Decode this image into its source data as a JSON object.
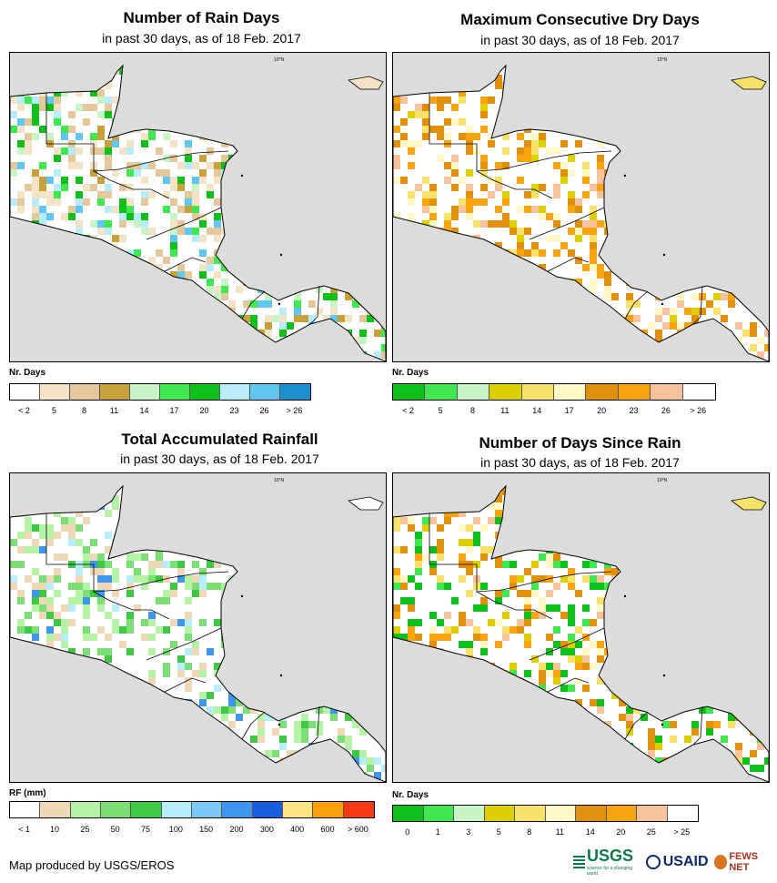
{
  "panels": {
    "rain_days": {
      "title": "Number of Rain Days",
      "subtitle": "in past 30 days, as of 18 Feb. 2017",
      "legend_title": "Nr. Days",
      "legend_colors": [
        "#ffffff",
        "#f5e3c8",
        "#e2c89a",
        "#c7a23b",
        "#c8f5c6",
        "#40e850",
        "#10c01a",
        "#b8ecf8",
        "#62c7f0",
        "#1a90d0"
      ],
      "legend_labels": [
        "< 2",
        "5",
        "8",
        "11",
        "14",
        "17",
        "20",
        "23",
        "26",
        "> 26"
      ],
      "map_markers": [
        "10°N"
      ]
    },
    "dry_days": {
      "title": "Maximum Consecutive Dry Days",
      "subtitle": "in past 30 days, as of 18 Feb. 2017",
      "legend_title": "Nr. Days",
      "legend_colors": [
        "#10c01a",
        "#40e850",
        "#c8f5c6",
        "#ddd000",
        "#f7e36a",
        "#fdf8c6",
        "#e0900a",
        "#f8a40e",
        "#f8c29a",
        "#ffffff"
      ],
      "legend_labels": [
        "< 2",
        "5",
        "8",
        "11",
        "14",
        "17",
        "20",
        "23",
        "26",
        "> 26"
      ],
      "map_markers": [
        "10°N"
      ]
    },
    "rainfall": {
      "title": "Total Accumulated Rainfall",
      "subtitle": "in past 30 days, as of 18 Feb. 2017",
      "legend_title": "RF (mm)",
      "legend_colors": [
        "#ffffff",
        "#efd8b8",
        "#b6f2a6",
        "#7ede76",
        "#3ec844",
        "#b8eefa",
        "#7cc8f6",
        "#3e96ee",
        "#1a5ee0",
        "#ffe484",
        "#f8a10c",
        "#f83a14"
      ],
      "legend_labels": [
        "< 1",
        "10",
        "25",
        "50",
        "75",
        "100",
        "150",
        "200",
        "300",
        "400",
        "600",
        "> 600"
      ],
      "map_markers": [
        "10°N"
      ]
    },
    "days_since_rain": {
      "title": "Number of Days Since Rain",
      "subtitle": "in past 30 days, as of 18 Feb. 2017",
      "legend_title": "Nr. Days",
      "legend_colors": [
        "#10c01a",
        "#40e850",
        "#c8f5c6",
        "#ddd000",
        "#f7e36a",
        "#fdf8c6",
        "#e0900a",
        "#f8a40e",
        "#f8c29a",
        "#ffffff"
      ],
      "legend_labels": [
        "0",
        "1",
        "3",
        "5",
        "8",
        "11",
        "14",
        "20",
        "25",
        "> 25"
      ],
      "map_markers": [
        "10°N"
      ]
    }
  },
  "footer": {
    "credit": "Map produced by USGS/EROS"
  },
  "logos": {
    "usgs": "USGS",
    "usgs_tagline": "science for a changing world",
    "usaid": "USAID",
    "fews": "FEWS NET"
  }
}
